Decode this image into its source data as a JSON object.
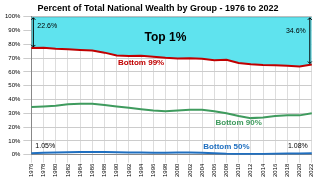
{
  "chart_data": {
    "type": "line",
    "title": "Percent of Total National Wealth by Group - 1976 to 2022",
    "categories": [
      "1976",
      "1978",
      "1980",
      "1982",
      "1984",
      "1986",
      "1988",
      "1990",
      "1992",
      "1994",
      "1996",
      "1998",
      "2000",
      "2002",
      "2004",
      "2006",
      "2008",
      "2010",
      "2012",
      "2014",
      "2016",
      "2018",
      "2020",
      "2022"
    ],
    "series": [
      {
        "name": "Bottom 99%",
        "color": "#c00000",
        "values": [
          77.4,
          77.5,
          76.8,
          76.5,
          76.0,
          75.5,
          74.0,
          72.0,
          71.5,
          71.8,
          71.0,
          70.3,
          69.8,
          70.0,
          69.5,
          68.5,
          68.8,
          66.5,
          65.5,
          65.0,
          64.8,
          64.5,
          64.0,
          65.4
        ]
      },
      {
        "name": "Top 1%",
        "color": "#5fe3ee",
        "type": "area",
        "stacked": true,
        "data_labels": true,
        "values": [
          22.6,
          22.5,
          23.2,
          23.5,
          24.0,
          24.5,
          26.0,
          28.0,
          28.5,
          28.2,
          29.0,
          29.7,
          30.2,
          30.0,
          30.5,
          31.5,
          31.2,
          33.5,
          34.5,
          35.0,
          35.2,
          35.5,
          36.0,
          34.6
        ],
        "value_labels": [
          "22.6%",
          null,
          null,
          null,
          null,
          null,
          null,
          null,
          null,
          null,
          null,
          null,
          null,
          null,
          null,
          null,
          null,
          null,
          null,
          null,
          null,
          null,
          null,
          "34.6%"
        ]
      },
      {
        "name": "Bottom 90%",
        "color": "#3f9b5e",
        "values": [
          34.5,
          35.0,
          35.5,
          36.5,
          37.0,
          37.0,
          36.0,
          35.0,
          34.0,
          33.0,
          32.0,
          31.5,
          32.0,
          32.5,
          32.5,
          31.5,
          30.0,
          28.0,
          26.5,
          27.0,
          28.0,
          28.5,
          28.5,
          30.0
        ]
      },
      {
        "name": "Bottom 50%",
        "color": "#1f6fc0",
        "data_labels": true,
        "values": [
          1.05,
          1.3,
          1.5,
          1.8,
          2.0,
          2.0,
          1.9,
          1.8,
          1.6,
          1.5,
          1.4,
          1.4,
          1.5,
          1.5,
          1.4,
          1.0,
          0.6,
          0.4,
          0.4,
          0.5,
          0.6,
          0.8,
          0.9,
          1.08
        ],
        "value_labels": [
          "1.05%",
          null,
          null,
          null,
          null,
          null,
          null,
          null,
          null,
          null,
          null,
          null,
          null,
          null,
          null,
          null,
          null,
          null,
          null,
          null,
          null,
          null,
          null,
          "1.08%"
        ]
      }
    ],
    "ylim": [
      0,
      100
    ],
    "yticks": [
      {
        "value": 0,
        "label": "0%"
      },
      {
        "value": 10,
        "label": "10%"
      },
      {
        "value": 20,
        "label": "20%"
      },
      {
        "value": 30,
        "label": "30%"
      },
      {
        "value": 40,
        "label": "40%"
      },
      {
        "value": 50,
        "label": "50%"
      },
      {
        "value": 60,
        "label": "60%"
      },
      {
        "value": 70,
        "label": "70%"
      },
      {
        "value": 80,
        "label": "80%"
      },
      {
        "value": 90,
        "label": "90%"
      },
      {
        "value": 100,
        "label": "100%"
      }
    ],
    "grid": true
  }
}
